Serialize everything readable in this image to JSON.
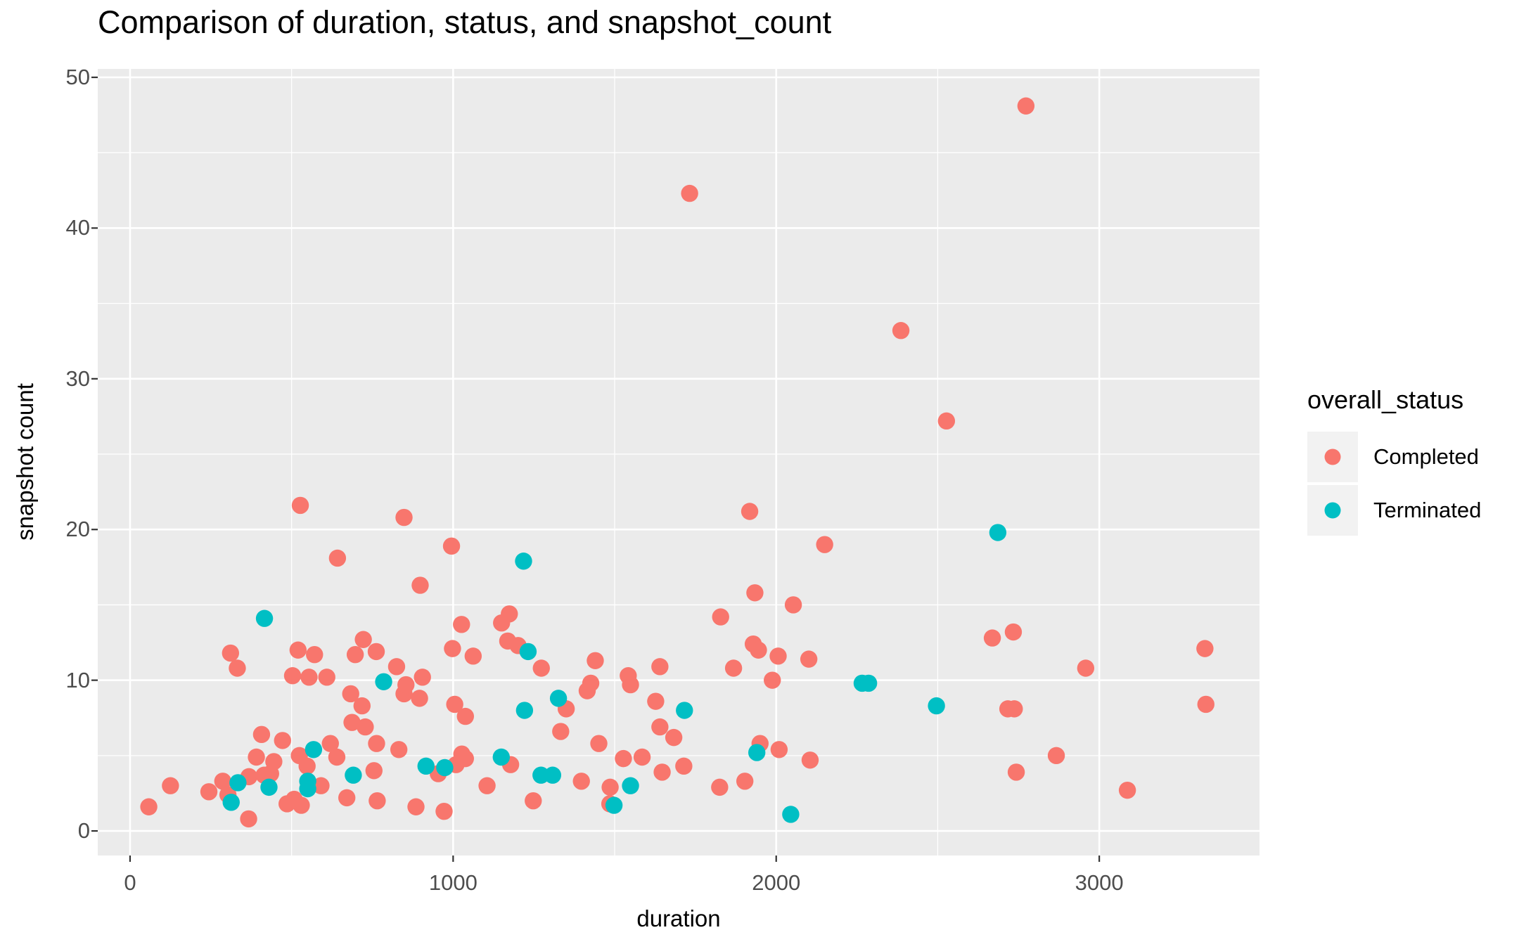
{
  "chart_data": {
    "type": "scatter",
    "title": "Comparison of duration, status, and snapshot_count",
    "xlabel": "duration",
    "ylabel": "snapshot count",
    "legend_title": "overall_status",
    "legend_position": "right",
    "grid": true,
    "panel_bg": "#EBEBEB",
    "grid_color": "#FFFFFF",
    "tick_color": "#333333",
    "tick_label_color": "#4d4d4d",
    "xlim": [
      -100,
      3496
    ],
    "ylim": [
      -1.63,
      50.56
    ],
    "x_ticks": [
      0,
      1000,
      2000,
      3000
    ],
    "x_minor": [
      500,
      1500,
      2500,
      3500
    ],
    "y_ticks": [
      0,
      10,
      20,
      30,
      40,
      50
    ],
    "y_minor": [
      5,
      15,
      25,
      35,
      45
    ],
    "series": [
      {
        "name": "Completed",
        "color": "#F8766D",
        "points": [
          [
            58,
            1.6
          ],
          [
            125,
            3.0
          ],
          [
            244,
            2.6
          ],
          [
            287,
            3.3
          ],
          [
            303,
            2.4
          ],
          [
            311,
            11.8
          ],
          [
            332,
            10.8
          ],
          [
            367,
            0.8
          ],
          [
            368,
            3.6
          ],
          [
            391,
            4.9
          ],
          [
            407,
            6.4
          ],
          [
            415,
            3.7
          ],
          [
            435,
            3.8
          ],
          [
            445,
            4.6
          ],
          [
            472,
            6.0
          ],
          [
            486,
            1.8
          ],
          [
            503,
            10.3
          ],
          [
            508,
            2.1
          ],
          [
            520,
            12.0
          ],
          [
            524,
            5.0
          ],
          [
            527,
            21.6
          ],
          [
            530,
            1.7
          ],
          [
            548,
            4.3
          ],
          [
            554,
            10.2
          ],
          [
            571,
            11.7
          ],
          [
            591,
            3.0
          ],
          [
            609,
            10.2
          ],
          [
            620,
            5.8
          ],
          [
            640,
            4.9
          ],
          [
            642,
            18.1
          ],
          [
            671,
            2.2
          ],
          [
            683,
            9.1
          ],
          [
            687,
            7.2
          ],
          [
            697,
            11.7
          ],
          [
            718,
            8.3
          ],
          [
            722,
            12.7
          ],
          [
            728,
            6.9
          ],
          [
            755,
            4.0
          ],
          [
            762,
            11.9
          ],
          [
            763,
            5.8
          ],
          [
            765,
            2.0
          ],
          [
            825,
            10.9
          ],
          [
            832,
            5.4
          ],
          [
            848,
            9.1
          ],
          [
            848,
            20.8
          ],
          [
            854,
            9.7
          ],
          [
            885,
            1.6
          ],
          [
            896,
            8.8
          ],
          [
            898,
            16.3
          ],
          [
            905,
            10.2
          ],
          [
            954,
            3.8
          ],
          [
            972,
            1.3
          ],
          [
            995,
            18.9
          ],
          [
            998,
            12.1
          ],
          [
            1005,
            8.4
          ],
          [
            1009,
            4.4
          ],
          [
            1026,
            13.7
          ],
          [
            1027,
            5.1
          ],
          [
            1038,
            4.8
          ],
          [
            1038,
            7.6
          ],
          [
            1062,
            11.6
          ],
          [
            1105,
            3.0
          ],
          [
            1150,
            13.8
          ],
          [
            1169,
            12.6
          ],
          [
            1174,
            14.4
          ],
          [
            1178,
            4.4
          ],
          [
            1201,
            12.3
          ],
          [
            1248,
            2.0
          ],
          [
            1273,
            10.8
          ],
          [
            1333,
            6.6
          ],
          [
            1350,
            8.1
          ],
          [
            1397,
            3.3
          ],
          [
            1415,
            9.3
          ],
          [
            1426,
            9.8
          ],
          [
            1440,
            11.3
          ],
          [
            1451,
            5.8
          ],
          [
            1485,
            1.8
          ],
          [
            1486,
            2.9
          ],
          [
            1527,
            4.8
          ],
          [
            1542,
            10.3
          ],
          [
            1549,
            9.7
          ],
          [
            1585,
            4.9
          ],
          [
            1627,
            8.6
          ],
          [
            1640,
            6.9
          ],
          [
            1640,
            10.9
          ],
          [
            1647,
            3.9
          ],
          [
            1683,
            6.2
          ],
          [
            1714,
            4.3
          ],
          [
            1732,
            42.3
          ],
          [
            1825,
            2.9
          ],
          [
            1828,
            14.2
          ],
          [
            1868,
            10.8
          ],
          [
            1903,
            3.3
          ],
          [
            1918,
            21.2
          ],
          [
            1929,
            12.4
          ],
          [
            1934,
            15.8
          ],
          [
            1945,
            12.0
          ],
          [
            1950,
            5.8
          ],
          [
            1988,
            10.0
          ],
          [
            2006,
            11.6
          ],
          [
            2009,
            5.4
          ],
          [
            2053,
            15.0
          ],
          [
            2101,
            11.4
          ],
          [
            2105,
            4.7
          ],
          [
            2150,
            19.0
          ],
          [
            2386,
            33.2
          ],
          [
            2527,
            27.2
          ],
          [
            2669,
            12.8
          ],
          [
            2717,
            8.1
          ],
          [
            2734,
            13.2
          ],
          [
            2737,
            8.1
          ],
          [
            2743,
            3.9
          ],
          [
            2773,
            48.1
          ],
          [
            2867,
            5.0
          ],
          [
            2958,
            10.8
          ],
          [
            3087,
            2.7
          ],
          [
            3327,
            12.1
          ],
          [
            3330,
            8.4
          ]
        ]
      },
      {
        "name": "Terminated",
        "color": "#00BFC4",
        "points": [
          [
            313,
            1.9
          ],
          [
            334,
            3.2
          ],
          [
            416,
            14.1
          ],
          [
            430,
            2.9
          ],
          [
            550,
            2.8
          ],
          [
            550,
            3.3
          ],
          [
            568,
            5.4
          ],
          [
            691,
            3.7
          ],
          [
            785,
            9.9
          ],
          [
            916,
            4.3
          ],
          [
            974,
            4.2
          ],
          [
            1149,
            4.9
          ],
          [
            1218,
            17.9
          ],
          [
            1221,
            8.0
          ],
          [
            1232,
            11.9
          ],
          [
            1272,
            3.7
          ],
          [
            1308,
            3.7
          ],
          [
            1326,
            8.8
          ],
          [
            1498,
            1.7
          ],
          [
            1549,
            3.0
          ],
          [
            1716,
            8.0
          ],
          [
            1940,
            5.2
          ],
          [
            2045,
            1.1
          ],
          [
            2266,
            9.8
          ],
          [
            2286,
            9.8
          ],
          [
            2496,
            8.3
          ],
          [
            2686,
            19.8
          ]
        ]
      }
    ]
  }
}
